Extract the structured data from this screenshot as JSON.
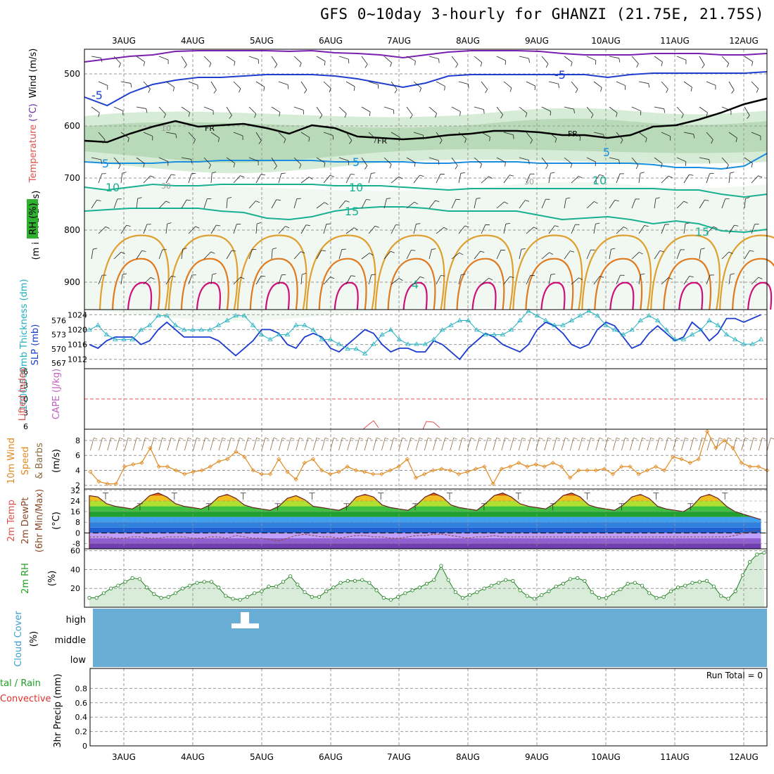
{
  "title": "GFS 0~10day 3-hourly for GHANZI (21.75E, 21.75S)",
  "dates": [
    "3AUG",
    "4AUG",
    "5AUG",
    "6AUG",
    "7AUG",
    "8AUG",
    "9AUG",
    "10AUG",
    "11AUG",
    "12AUG"
  ],
  "panels": {
    "upper": {
      "labels": [
        {
          "text": "RH (%)",
          "color": "#00a000"
        },
        {
          "text": "Temperature",
          "color": "#e05050"
        },
        {
          "text": "(°C)",
          "color": "#6a2aa0"
        },
        {
          "text": "Wind (m/s)",
          "color": "#000000"
        }
      ],
      "unit_label": "(m i l l i b a r s)",
      "ticks": [
        "500",
        "600",
        "700",
        "800",
        "900"
      ],
      "contour_labels": [
        "-5",
        "-5",
        "5",
        "5",
        "5",
        "10",
        "10",
        "10",
        "15",
        "15",
        "4",
        "FR",
        "FR",
        "FR",
        "10",
        "30",
        "30"
      ]
    },
    "slp": {
      "left_label": "1000-500mb Thickness (dm)",
      "right_label": "SLP (mb)",
      "left_ticks": [
        "576",
        "573",
        "570",
        "567"
      ],
      "right_ticks": [
        "1024",
        "1020",
        "1016",
        "1012"
      ]
    },
    "cape": {
      "left_label": "Lifted Index",
      "right_label": "CAPE (J/kg)",
      "ticks": [
        "-6",
        "-3",
        "0",
        "3",
        "6"
      ]
    },
    "wind10": {
      "labels": [
        "10m Wind",
        "Speed",
        "& Barbs"
      ],
      "unit": "(m/s)",
      "ticks": [
        "8",
        "6",
        "4",
        "2"
      ]
    },
    "temp": {
      "labels": [
        "2m Temp",
        "2m DewPt",
        "(6hr Min/Max)"
      ],
      "unit": "(°C)",
      "ticks": [
        "32",
        "24",
        "16",
        "8",
        "0",
        "-8"
      ]
    },
    "rh": {
      "label": "2m RH",
      "unit": "(%)",
      "ticks": [
        "60",
        "40",
        "20"
      ]
    },
    "cloud": {
      "label": "Cloud Cover",
      "unit": "(%)",
      "levels": [
        "high",
        "middle",
        "low"
      ]
    },
    "precip": {
      "labels": [
        "tal / Rain",
        "Convective"
      ],
      "unit": "3hr Precip (mm)",
      "ticks": [
        "0.8",
        "0.6",
        "0.4",
        "0.2",
        "0"
      ],
      "run_total": "Run Total = 0"
    }
  },
  "chart_data": [
    {
      "type": "line",
      "panel": "slp",
      "x": [
        "2 Aug 12Z",
        "2 Aug 15Z",
        "2 Aug 18Z",
        "2 Aug 21Z",
        "3 Aug 00Z",
        "3 Aug 03Z",
        "3 Aug 06Z",
        "3 Aug 09Z",
        "3 Aug 12Z",
        "3 Aug 15Z",
        "3 Aug 18Z",
        "3 Aug 21Z",
        "4 Aug 00Z",
        "4 Aug 03Z",
        "4 Aug 06Z",
        "4 Aug 09Z",
        "4 Aug 12Z",
        "4 Aug 15Z",
        "4 Aug 18Z",
        "4 Aug 21Z",
        "5 Aug 00Z",
        "5 Aug 03Z",
        "5 Aug 06Z",
        "5 Aug 09Z",
        "5 Aug 12Z",
        "5 Aug 15Z",
        "5 Aug 18Z",
        "5 Aug 21Z",
        "6 Aug 00Z",
        "6 Aug 03Z",
        "6 Aug 06Z",
        "6 Aug 09Z",
        "6 Aug 12Z",
        "6 Aug 15Z",
        "6 Aug 18Z",
        "6 Aug 21Z",
        "7 Aug 00Z",
        "7 Aug 03Z",
        "7 Aug 06Z",
        "7 Aug 09Z",
        "7 Aug 12Z",
        "7 Aug 15Z",
        "7 Aug 18Z",
        "7 Aug 21Z",
        "8 Aug 00Z",
        "8 Aug 03Z",
        "8 Aug 06Z",
        "8 Aug 09Z",
        "8 Aug 12Z",
        "8 Aug 15Z",
        "8 Aug 18Z",
        "8 Aug 21Z",
        "9 Aug 00Z",
        "9 Aug 03Z",
        "9 Aug 06Z",
        "9 Aug 09Z",
        "9 Aug 12Z",
        "9 Aug 15Z",
        "9 Aug 18Z",
        "9 Aug 21Z",
        "10 Aug 00Z",
        "10 Aug 03Z",
        "10 Aug 06Z",
        "10 Aug 09Z",
        "10 Aug 12Z",
        "10 Aug 15Z",
        "10 Aug 18Z",
        "10 Aug 21Z",
        "11 Aug 00Z",
        "11 Aug 03Z",
        "11 Aug 06Z",
        "11 Aug 09Z",
        "11 Aug 12Z",
        "11 Aug 15Z",
        "11 Aug 18Z",
        "11 Aug 21Z",
        "12 Aug 00Z",
        "12 Aug 03Z",
        "12 Aug 06Z"
      ],
      "series": [
        {
          "name": "SLP (mb)",
          "color": "#1a3ad0",
          "axis": "right",
          "values": [
            1016,
            1015,
            1017,
            1018,
            1018,
            1018,
            1016,
            1017,
            1020,
            1022,
            1020,
            1018,
            1018,
            1018,
            1018,
            1017,
            1015,
            1013,
            1015,
            1017,
            1020,
            1020,
            1019,
            1016,
            1015,
            1018,
            1019,
            1018,
            1015,
            1014,
            1016,
            1018,
            1020,
            1019,
            1016,
            1014,
            1015,
            1015,
            1014,
            1014,
            1017,
            1016,
            1014,
            1012,
            1015,
            1017,
            1019,
            1018,
            1016,
            1015,
            1014,
            1016,
            1020,
            1022,
            1021,
            1019,
            1016,
            1015,
            1016,
            1020,
            1022,
            1021,
            1018,
            1015,
            1016,
            1019,
            1021,
            1019,
            1017,
            1018,
            1022,
            1020,
            1017,
            1019,
            1023,
            1023,
            1022,
            1023,
            1024
          ]
        },
        {
          "name": "1000-500mb Thickness (dm)",
          "color": "#20b0c0",
          "axis": "left",
          "values": [
            574,
            575,
            573,
            572,
            572,
            572,
            574,
            575,
            577,
            577,
            575,
            574,
            574,
            574,
            574,
            575,
            576,
            577,
            577,
            575,
            573,
            572,
            573,
            573,
            575,
            575,
            574,
            572,
            572,
            571,
            570,
            570,
            569,
            571,
            573,
            574,
            572,
            571,
            571,
            571,
            572,
            574,
            575,
            576,
            576,
            574,
            573,
            573,
            573,
            574,
            576,
            578,
            577,
            576,
            575,
            575,
            576,
            577,
            578,
            577,
            575,
            574,
            573,
            574,
            576,
            577,
            576,
            574,
            572,
            572,
            573,
            574,
            576,
            575,
            573,
            572,
            571,
            571,
            572
          ]
        }
      ],
      "ylim_right": [
        1011,
        1025
      ],
      "ylim_left": [
        567,
        578
      ]
    },
    {
      "type": "line",
      "panel": "wind10",
      "name": "10m wind speed (m/s)",
      "values": [
        3.8,
        2.5,
        2.2,
        2.2,
        4.5,
        4.8,
        5.0,
        7.0,
        4.5,
        4.5,
        4.0,
        3.5,
        3.8,
        4.0,
        4.5,
        5.2,
        5.5,
        6.5,
        5.8,
        4.0,
        3.5,
        3.5,
        5.5,
        3.8,
        2.8,
        5.0,
        5.5,
        4.0,
        3.5,
        3.8,
        4.5,
        4.0,
        3.8,
        3.5,
        3.5,
        4.0,
        4.5,
        5.5,
        3.0,
        3.5,
        4.0,
        4.2,
        4.0,
        3.5,
        3.8,
        4.2,
        4.5,
        2.2,
        4.2,
        4.5,
        5.0,
        4.5,
        4.8,
        4.5,
        5.0,
        4.5,
        3.0,
        4.0,
        4.0,
        4.0,
        4.2,
        3.5,
        4.5,
        4.5,
        3.5,
        4.0,
        4.5,
        4.0,
        5.8,
        5.5,
        5.0,
        5.5,
        9.2,
        7.0,
        8.0,
        7.0,
        5.0,
        4.5,
        4.5,
        4.0
      ],
      "ylim": [
        1.5,
        9.5
      ]
    },
    {
      "type": "area",
      "panel": "temp",
      "series": [
        {
          "name": "2m Temp",
          "values": [
            28,
            27,
            22,
            20,
            19,
            18,
            22,
            28,
            30,
            27,
            22,
            20,
            19,
            18,
            21,
            27,
            29,
            26,
            21,
            19,
            18,
            17,
            20,
            26,
            28,
            25,
            20,
            19,
            18,
            17,
            20,
            27,
            29,
            27,
            21,
            19,
            18,
            17,
            21,
            27,
            30,
            27,
            21,
            19,
            18,
            17,
            22,
            28,
            30,
            27,
            22,
            20,
            19,
            18,
            22,
            28,
            30,
            27,
            21,
            19,
            18,
            17,
            21,
            27,
            29,
            26,
            20,
            18,
            17,
            16,
            20,
            27,
            29,
            26,
            20,
            16,
            14,
            12,
            10
          ]
        },
        {
          "name": "2m DewPt",
          "values": [
            -3,
            -3,
            -3,
            -4,
            -4,
            -3,
            -3,
            -4,
            -4,
            -3,
            -3,
            -3,
            -4,
            -4,
            -3,
            -3,
            -4,
            -2,
            -3,
            -4,
            -4,
            -5,
            -6,
            -4,
            -2,
            -1,
            -2,
            -3,
            -3,
            -4,
            -3,
            -2,
            -2,
            -3,
            -3,
            -4,
            -4,
            -3,
            -2,
            -2,
            -1,
            -1,
            -2,
            -3,
            -4,
            -3,
            -3,
            -2,
            -3,
            -3,
            -3,
            -3,
            -3,
            -3,
            -3,
            -3,
            -3,
            -3,
            -3,
            -3,
            -3,
            -3,
            -3,
            -3,
            -3,
            -3,
            -3,
            -3,
            -3,
            -3,
            -3,
            -3,
            -3,
            -3,
            -3,
            -2,
            0,
            1,
            2
          ]
        }
      ],
      "ylim": [
        -12,
        33
      ]
    },
    {
      "type": "area",
      "panel": "rh",
      "name": "2m RH (%)",
      "values": [
        10,
        10,
        15,
        20,
        23,
        27,
        31,
        30,
        21,
        14,
        10,
        11,
        15,
        20,
        23,
        26,
        27,
        27,
        21,
        12,
        9,
        8,
        11,
        15,
        17,
        22,
        22,
        27,
        33,
        24,
        16,
        11,
        11,
        17,
        21,
        26,
        28,
        28,
        29,
        26,
        18,
        10,
        8,
        11,
        15,
        18,
        21,
        25,
        29,
        44,
        29,
        16,
        10,
        13,
        16,
        20,
        23,
        26,
        29,
        28,
        18,
        12,
        9,
        13,
        17,
        22,
        25,
        30,
        31,
        28,
        16,
        10,
        10,
        15,
        19,
        25,
        26,
        23,
        15,
        10,
        11,
        17,
        21,
        23,
        26,
        27,
        28,
        22,
        12,
        9,
        17,
        34,
        48,
        56,
        58
      ],
      "ylim": [
        0,
        62
      ]
    },
    {
      "type": "line",
      "panel": "precip",
      "name": "3hr Precip (mm)",
      "values": [],
      "ylim": [
        0,
        1
      ]
    }
  ]
}
